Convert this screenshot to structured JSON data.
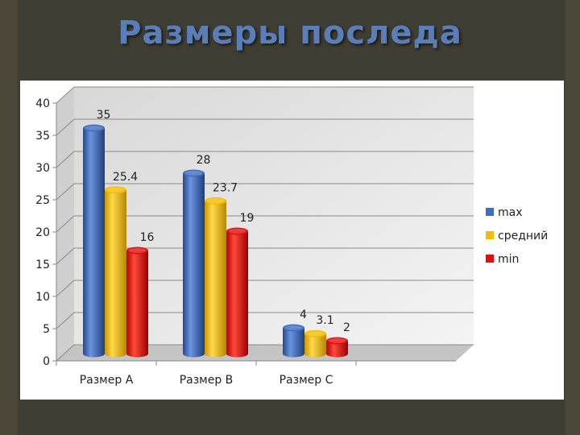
{
  "slide": {
    "title": "Размеры последа"
  },
  "colors": {
    "max": "#3e6cc0",
    "avg": "#f2bd00",
    "min": "#e20f0f"
  },
  "chart_data": {
    "type": "bar",
    "categories": [
      "Размер A",
      "Размер B",
      "Размер C"
    ],
    "series": [
      {
        "name": "max",
        "values": [
          35,
          28,
          4
        ]
      },
      {
        "name": "средний",
        "values": [
          25.4,
          23.7,
          3.1
        ]
      },
      {
        "name": "min",
        "values": [
          16,
          19,
          2
        ]
      }
    ],
    "data_labels": [
      [
        "35",
        "28",
        "4"
      ],
      [
        "25.4",
        "23.7",
        "3.1"
      ],
      [
        "16",
        "19",
        "2"
      ]
    ],
    "yticks": [
      "0",
      "5",
      "10",
      "15",
      "20",
      "25",
      "30",
      "35",
      "40"
    ],
    "ylim": [
      0,
      40
    ],
    "grid": true,
    "legend": "right",
    "style": "3d-cylinder"
  }
}
